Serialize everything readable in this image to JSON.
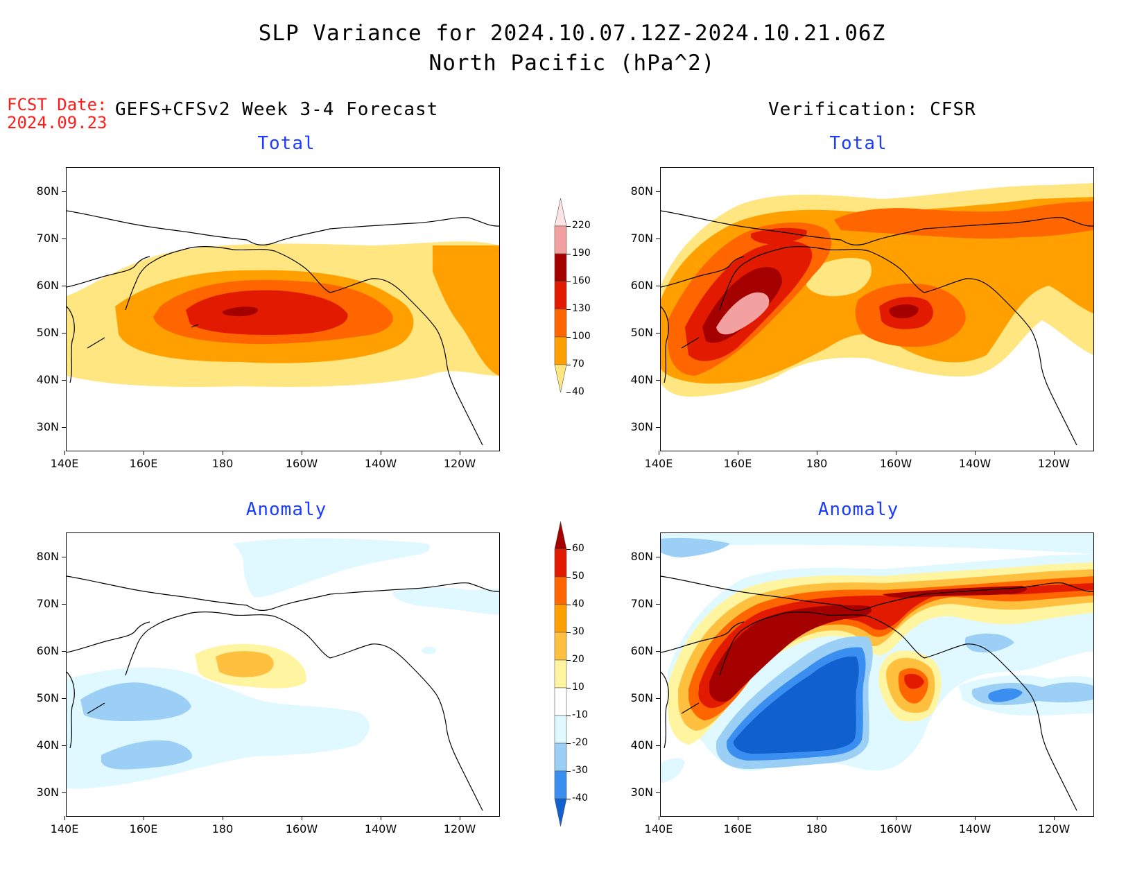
{
  "title": {
    "line1": "SLP Variance for 2024.10.07.12Z-2024.10.21.06Z",
    "line2": "North Pacific (hPa^2)"
  },
  "fcst": {
    "label": "FCST Date:",
    "date": "2024.09.23"
  },
  "left_header": "GEFS+CFSv2 Week 3-4 Forecast",
  "right_header": "Verification: CFSR",
  "panels": {
    "top_left_title": "Total",
    "top_right_title": "Total",
    "bottom_left_title": "Anomaly",
    "bottom_right_title": "Anomaly"
  },
  "axes": {
    "lat_labels": [
      "80N",
      "70N",
      "60N",
      "50N",
      "40N",
      "30N"
    ],
    "lon_labels": [
      "140E",
      "160E",
      "180",
      "160W",
      "140W",
      "120W"
    ]
  },
  "total_colorbar": {
    "labels": [
      "220",
      "190",
      "160",
      "130",
      "100",
      "70",
      "40"
    ],
    "colors": [
      "#fde3e3",
      "#f2a0a0",
      "#a50000",
      "#e11a00",
      "#ff6600",
      "#ffa000",
      "#ffe680"
    ]
  },
  "anomaly_colorbar": {
    "labels": [
      "60",
      "50",
      "40",
      "30",
      "20",
      "10",
      "-10",
      "-20",
      "-30",
      "-40"
    ],
    "colors": [
      "#a50000",
      "#e11a00",
      "#ff6600",
      "#ffa000",
      "#ffc040",
      "#fff5a0",
      "#ffffff",
      "#e0f8ff",
      "#9ccff6",
      "#3a8ef0",
      "#1060d0"
    ]
  }
}
